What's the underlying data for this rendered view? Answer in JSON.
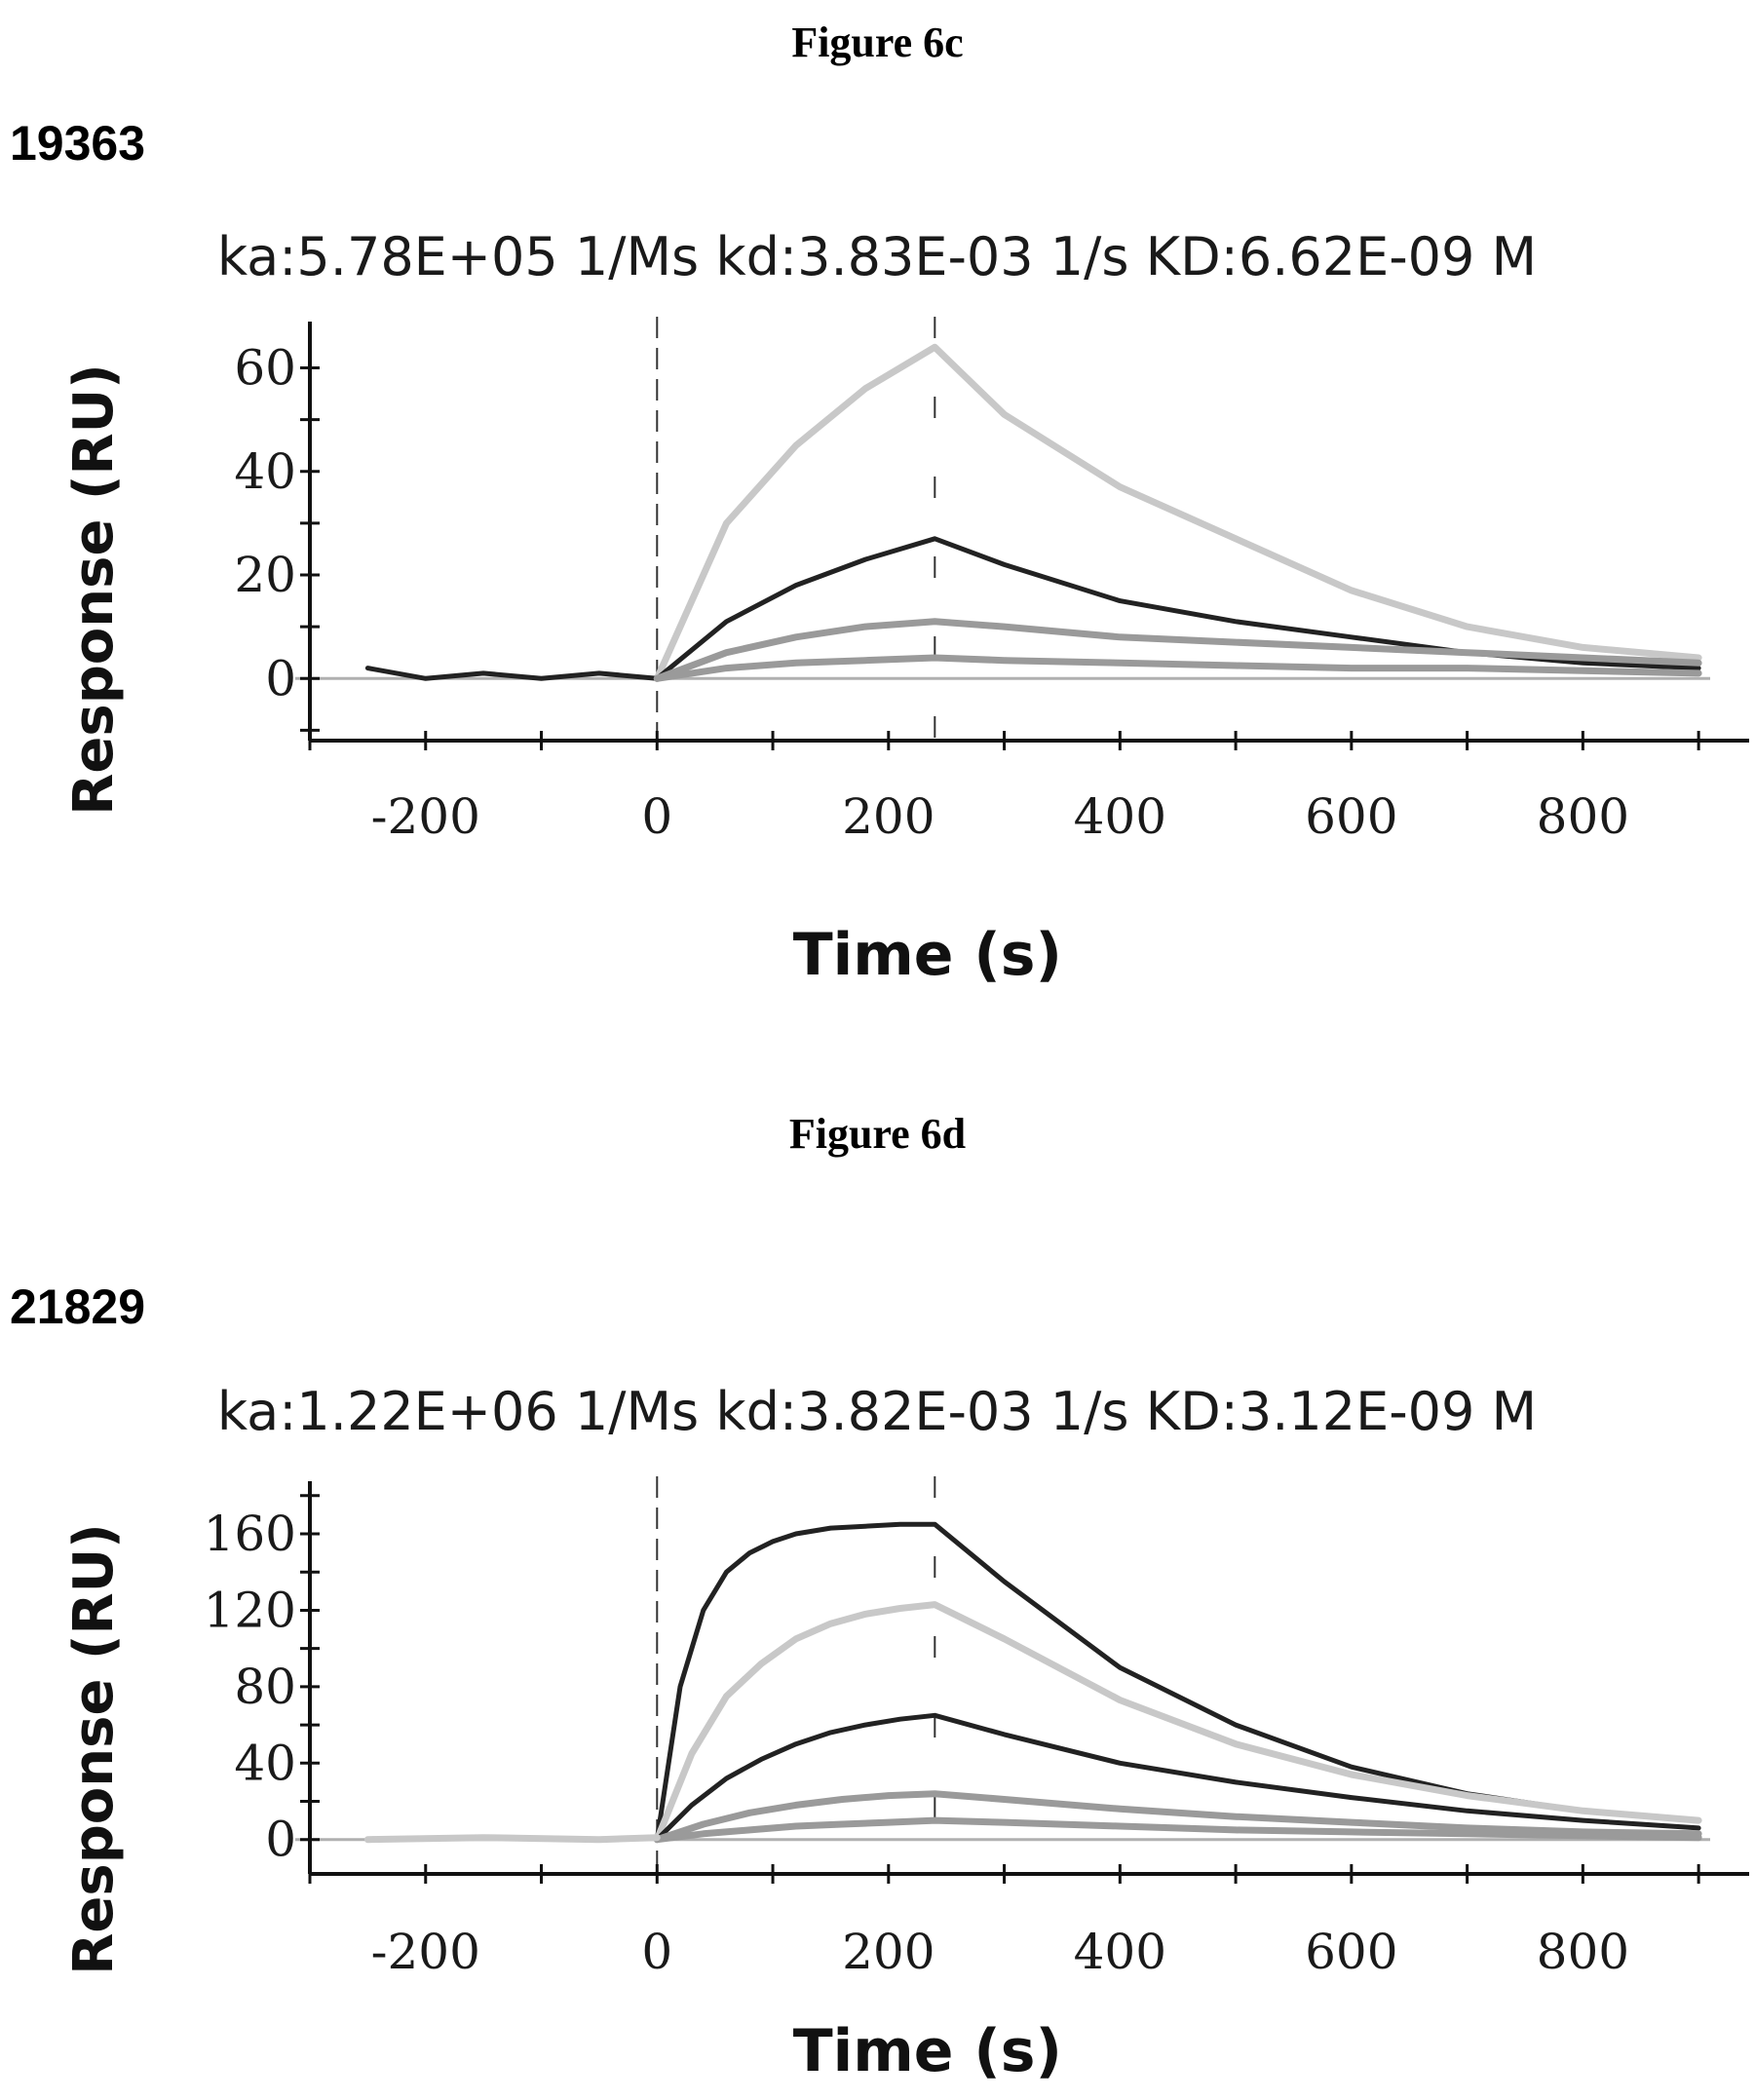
{
  "figures": [
    {
      "caption": "Figure 6c",
      "sample_id": "19363"
    },
    {
      "caption": "Figure 6d",
      "sample_id": "21829"
    }
  ],
  "chart_data": [
    {
      "type": "line",
      "title": "ka:5.78E+05 1/Ms  kd:3.83E-03 1/s  KD:6.62E-09 M",
      "xlabel": "Time (s)",
      "ylabel": "Response (RU)",
      "xlim": [
        -300,
        910
      ],
      "ylim": [
        -12,
        68
      ],
      "xticks": [
        -200,
        0,
        200,
        400,
        600,
        800
      ],
      "yticks": [
        0,
        20,
        40,
        60
      ],
      "grid": false,
      "colors": {
        "dark": "#222222",
        "gray": "#9a9a9a",
        "light": "#c8c8c8",
        "zero": "#b0b0b0"
      },
      "series": [
        {
          "shade": "light",
          "x": [
            0,
            60,
            120,
            180,
            240,
            300,
            400,
            500,
            600,
            700,
            800,
            900
          ],
          "y": [
            0,
            30,
            45,
            56,
            64,
            51,
            37,
            27,
            17,
            10,
            6,
            4
          ]
        },
        {
          "shade": "dark",
          "x": [
            -250,
            -200,
            -150,
            -100,
            -50,
            0,
            60,
            120,
            180,
            240,
            300,
            400,
            500,
            600,
            700,
            800,
            900
          ],
          "y": [
            2,
            0,
            1,
            0,
            1,
            0,
            11,
            18,
            23,
            27,
            22,
            15,
            11,
            8,
            5,
            3,
            2
          ]
        },
        {
          "shade": "gray",
          "x": [
            0,
            60,
            120,
            180,
            240,
            300,
            400,
            500,
            600,
            700,
            800,
            900
          ],
          "y": [
            0,
            5,
            8,
            10,
            11,
            10,
            8,
            7,
            6,
            5,
            4,
            3
          ]
        },
        {
          "shade": "gray",
          "x": [
            0,
            60,
            120,
            180,
            240,
            300,
            400,
            500,
            600,
            700,
            800,
            900
          ],
          "y": [
            0,
            2,
            3,
            3.5,
            4,
            3.5,
            3,
            2.5,
            2,
            2,
            1.5,
            1
          ]
        }
      ]
    },
    {
      "type": "line",
      "title": "ka:1.22E+06 1/Ms  kd:3.82E-03 1/s  KD:3.12E-09 M",
      "xlabel": "Time (s)",
      "ylabel": "Response (RU)",
      "xlim": [
        -300,
        910
      ],
      "ylim": [
        -18,
        185
      ],
      "xticks": [
        -200,
        0,
        200,
        400,
        600,
        800
      ],
      "yticks": [
        0,
        40,
        80,
        120,
        160
      ],
      "grid": false,
      "colors": {
        "dark": "#222222",
        "gray": "#9a9a9a",
        "light": "#c8c8c8",
        "zero": "#b0b0b0"
      },
      "series": [
        {
          "shade": "dark",
          "x": [
            0,
            20,
            40,
            60,
            80,
            100,
            120,
            150,
            180,
            210,
            240,
            300,
            400,
            500,
            600,
            700,
            800,
            900
          ],
          "y": [
            0,
            80,
            120,
            140,
            150,
            156,
            160,
            163,
            164,
            165,
            165,
            135,
            90,
            60,
            38,
            24,
            15,
            10
          ]
        },
        {
          "shade": "light",
          "x": [
            0,
            30,
            60,
            90,
            120,
            150,
            180,
            210,
            240,
            300,
            400,
            500,
            600,
            700,
            800,
            900
          ],
          "y": [
            0,
            45,
            75,
            92,
            105,
            113,
            118,
            121,
            123,
            105,
            73,
            50,
            34,
            23,
            15,
            10
          ]
        },
        {
          "shade": "dark",
          "x": [
            0,
            30,
            60,
            90,
            120,
            150,
            180,
            210,
            240,
            300,
            400,
            500,
            600,
            700,
            800,
            900
          ],
          "y": [
            0,
            18,
            32,
            42,
            50,
            56,
            60,
            63,
            65,
            55,
            40,
            30,
            22,
            15,
            10,
            6
          ]
        },
        {
          "shade": "gray",
          "x": [
            0,
            40,
            80,
            120,
            160,
            200,
            240,
            300,
            400,
            500,
            600,
            700,
            800,
            900
          ],
          "y": [
            0,
            8,
            14,
            18,
            21,
            23,
            24,
            21,
            16,
            12,
            9,
            6,
            4,
            3
          ]
        },
        {
          "shade": "gray",
          "x": [
            0,
            40,
            80,
            120,
            160,
            200,
            240,
            300,
            400,
            500,
            600,
            700,
            800,
            900
          ],
          "y": [
            0,
            3,
            5,
            7,
            8,
            9,
            10,
            9,
            7,
            5,
            4,
            3,
            2,
            1
          ]
        },
        {
          "shade": "light",
          "x": [
            -250,
            -150,
            -50,
            0
          ],
          "y": [
            0,
            1,
            0,
            1
          ]
        }
      ]
    }
  ]
}
